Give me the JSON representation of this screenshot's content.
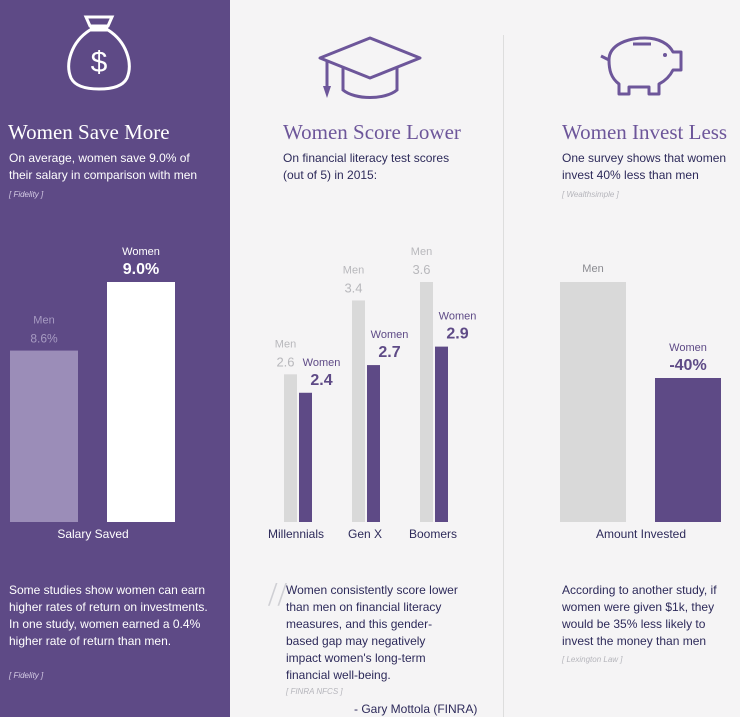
{
  "colors": {
    "primary_purple": "#5e4a86",
    "men_bar_gray": "#d9d9d9",
    "men_bar_light_purple": "#9b8db8",
    "women_bar_purple": "#5e4a86",
    "women_bar_white": "#ffffff"
  },
  "panels": [
    {
      "icon": "money-bag-icon",
      "title": "Women Save More",
      "description": "On average, women save 9.0% of their salary in comparison with men",
      "source": "[ Fidelity ]",
      "paragraph": "Some studies show women can earn higher rates of return on investments. In one study, women earned a 0.4% higher rate of return than men.",
      "paragraph_source": "[ Fidelity ]"
    },
    {
      "icon": "graduation-cap-icon",
      "title": "Women Score Lower",
      "description": "On financial literacy test scores (out of 5) in 2015:",
      "quote": "Women consistently score lower than men on financial literacy measures, and this gender-based gap may negatively impact women's long-term financial well-being.",
      "quote_source": "[ FINRA NFCS ]",
      "attribution": "- Gary Mottola (FINRA)"
    },
    {
      "icon": "piggy-bank-icon",
      "title": "Women Invest Less",
      "description": "One survey shows that women invest 40% less than men",
      "source": "[ Wealthsimple ]",
      "paragraph": "According to another study, if women were given $1k, they would be 35% less likely to invest the money than men",
      "paragraph_source": "[ Lexington Law ]"
    }
  ],
  "chart_data": [
    {
      "type": "bar",
      "categories": [
        "Salary Saved"
      ],
      "series": [
        {
          "name": "Men",
          "values": [
            8.6
          ],
          "labels": [
            "8.6%"
          ]
        },
        {
          "name": "Women",
          "values": [
            9.0
          ],
          "labels": [
            "9.0%"
          ]
        }
      ]
    },
    {
      "type": "bar",
      "categories": [
        "Millennials",
        "Gen X",
        "Boomers"
      ],
      "series": [
        {
          "name": "Men",
          "values": [
            2.6,
            3.4,
            3.6
          ],
          "labels": [
            "2.6",
            "3.4",
            "3.6"
          ]
        },
        {
          "name": "Women",
          "values": [
            2.4,
            2.7,
            2.9
          ],
          "labels": [
            "2.4",
            "2.7",
            "2.9"
          ]
        }
      ]
    },
    {
      "type": "bar",
      "categories": [
        "Amount Invested"
      ],
      "series": [
        {
          "name": "Men",
          "values": [
            100
          ],
          "labels": [
            ""
          ]
        },
        {
          "name": "Women",
          "values": [
            60
          ],
          "labels": [
            "-40%"
          ]
        }
      ]
    }
  ]
}
